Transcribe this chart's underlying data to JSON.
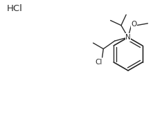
{
  "background_color": "#ffffff",
  "hcl_text": "HCl",
  "cl_text": "Cl",
  "n_text": "N",
  "o_text": "O",
  "line_color": "#2a2a2a",
  "text_color": "#2a2a2a",
  "font_size_label": 7.5,
  "font_size_hcl": 9.5,
  "lw": 1.0
}
